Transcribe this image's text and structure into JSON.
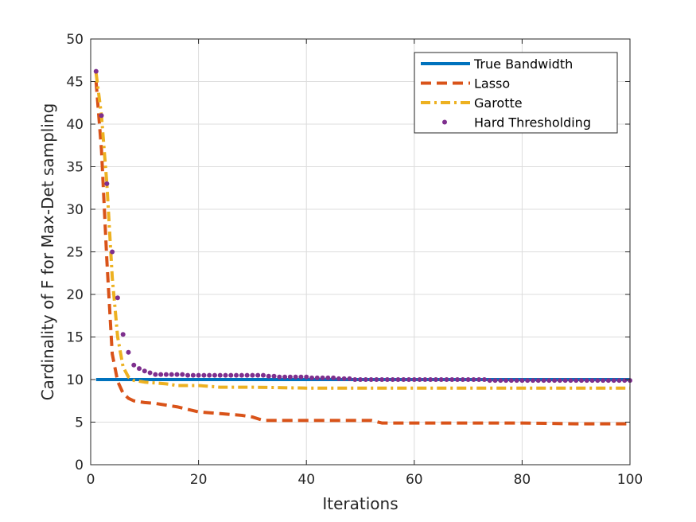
{
  "chart_data": {
    "type": "line",
    "xlabel": "Iterations",
    "ylabel": "Cardinality of F for Max-Det sampling",
    "xlim": [
      0,
      100
    ],
    "ylim": [
      0,
      50
    ],
    "xticks": [
      "0",
      "20",
      "40",
      "60",
      "80",
      "100"
    ],
    "yticks": [
      "0",
      "5",
      "10",
      "15",
      "20",
      "25",
      "30",
      "35",
      "40",
      "45",
      "50"
    ],
    "grid": true,
    "legend_position": "top-right",
    "series": [
      {
        "name": "True Bandwidth",
        "style": "solid",
        "color": "#0072BD",
        "x": [
          1,
          100
        ],
        "y": [
          10,
          10
        ]
      },
      {
        "name": "Lasso",
        "style": "dashed",
        "color": "#D95319",
        "x": [
          1,
          2,
          3,
          4,
          5,
          6,
          7,
          8,
          10,
          12,
          14,
          16,
          18,
          20,
          24,
          28,
          30,
          32,
          36,
          40,
          44,
          48,
          52,
          54,
          56,
          60,
          70,
          80,
          90,
          100
        ],
        "y": [
          45,
          37,
          24,
          13,
          9.8,
          8.4,
          7.8,
          7.5,
          7.3,
          7.2,
          7.0,
          6.8,
          6.5,
          6.2,
          6.0,
          5.8,
          5.6,
          5.2,
          5.2,
          5.2,
          5.2,
          5.2,
          5.2,
          4.9,
          4.9,
          4.9,
          4.9,
          4.9,
          4.8,
          4.8
        ]
      },
      {
        "name": "Garotte",
        "style": "dashdot",
        "color": "#EDB120",
        "x": [
          1,
          2,
          3,
          4,
          5,
          6,
          7,
          8,
          10,
          12,
          14,
          16,
          20,
          24,
          30,
          40,
          50,
          60,
          70,
          80,
          90,
          100
        ],
        "y": [
          46,
          41,
          33,
          22,
          15,
          11.5,
          10.3,
          9.9,
          9.7,
          9.6,
          9.5,
          9.3,
          9.3,
          9.1,
          9.1,
          9.0,
          9.0,
          9.0,
          9.0,
          9.0,
          9.0,
          9.0
        ]
      },
      {
        "name": "Hard Thresholding",
        "style": "dots",
        "color": "#7E2F8E",
        "x": [
          1,
          2,
          3,
          4,
          5,
          6,
          7,
          8,
          9,
          10,
          11,
          12,
          13,
          14,
          15,
          16,
          17,
          18,
          19,
          20,
          21,
          22,
          23,
          24,
          25,
          26,
          27,
          28,
          29,
          30,
          31,
          32,
          33,
          34,
          35,
          36,
          37,
          38,
          39,
          40,
          41,
          42,
          43,
          44,
          45,
          46,
          47,
          48,
          49,
          50,
          51,
          52,
          53,
          54,
          55,
          56,
          57,
          58,
          59,
          60,
          61,
          62,
          63,
          64,
          65,
          66,
          67,
          68,
          69,
          70,
          71,
          72,
          73,
          74,
          75,
          76,
          77,
          78,
          79,
          80,
          81,
          82,
          83,
          84,
          85,
          86,
          87,
          88,
          89,
          90,
          91,
          92,
          93,
          94,
          95,
          96,
          97,
          98,
          99,
          100
        ],
        "y": [
          46.2,
          41.0,
          33.0,
          25.0,
          19.6,
          15.3,
          13.2,
          11.7,
          11.3,
          11.0,
          10.8,
          10.6,
          10.6,
          10.6,
          10.6,
          10.6,
          10.6,
          10.5,
          10.5,
          10.5,
          10.5,
          10.5,
          10.5,
          10.5,
          10.5,
          10.5,
          10.5,
          10.5,
          10.5,
          10.5,
          10.5,
          10.5,
          10.4,
          10.4,
          10.3,
          10.3,
          10.3,
          10.3,
          10.3,
          10.3,
          10.2,
          10.2,
          10.2,
          10.2,
          10.2,
          10.1,
          10.1,
          10.1,
          10.0,
          10.0,
          10.0,
          10.0,
          10.0,
          10.0,
          10.0,
          10.0,
          10.0,
          10.0,
          10.0,
          10.0,
          10.0,
          10.0,
          10.0,
          10.0,
          10.0,
          10.0,
          10.0,
          10.0,
          10.0,
          10.0,
          10.0,
          10.0,
          10.0,
          9.9,
          9.9,
          9.9,
          9.9,
          9.9,
          9.9,
          9.9,
          9.9,
          9.9,
          9.9,
          9.9,
          9.9,
          9.9,
          9.9,
          9.9,
          9.9,
          9.9,
          9.9,
          9.9,
          9.9,
          9.9,
          9.9,
          9.9,
          9.9,
          9.9,
          9.9,
          9.9
        ]
      }
    ]
  }
}
